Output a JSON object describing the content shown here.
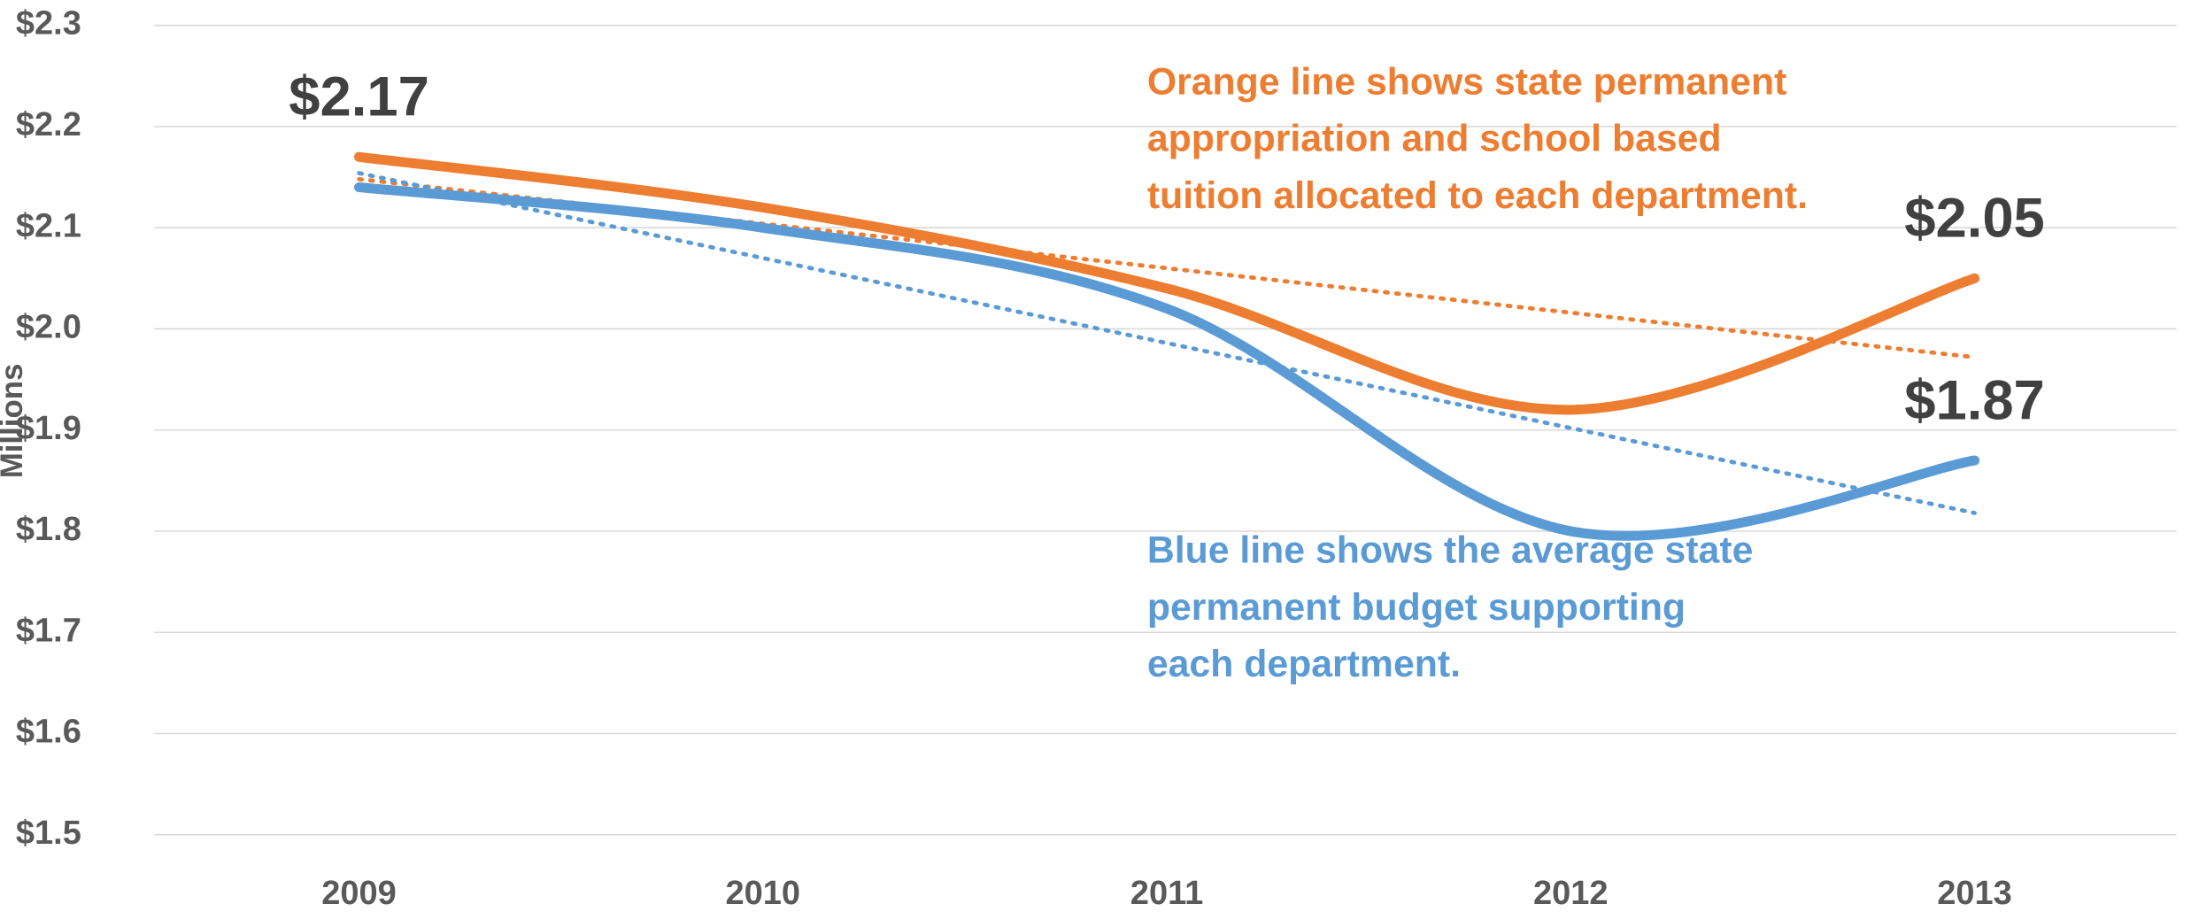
{
  "chart_data": {
    "type": "line",
    "y_axis_label": "Millions",
    "categories": [
      "2009",
      "2010",
      "2011",
      "2012",
      "2013"
    ],
    "series": [
      {
        "color": "#ed7d31",
        "values": [
          2.17,
          2.12,
          2.04,
          1.92,
          2.05
        ],
        "value_labels": [
          "$2.17",
          null,
          null,
          null,
          "$2.05"
        ],
        "trendline": true
      },
      {
        "color": "#5b9bd5",
        "values": [
          2.14,
          2.1,
          2.02,
          1.8,
          1.87
        ],
        "value_labels": [
          null,
          null,
          null,
          null,
          "$1.87"
        ],
        "trendline": true
      }
    ],
    "annotations": [
      {
        "color": "#ed7d31",
        "lines": [
          "Orange line shows state permanent",
          "appropriation and school based",
          "tuition allocated to each department."
        ]
      },
      {
        "color": "#5b9bd5",
        "lines": [
          "Blue line shows the average state",
          "permanent budget supporting",
          "each department."
        ]
      }
    ],
    "ylim": [
      1.5,
      2.3
    ],
    "yticks": [
      {
        "value": 1.5,
        "label": "$1.5"
      },
      {
        "value": 1.6,
        "label": "$1.6"
      },
      {
        "value": 1.7,
        "label": "$1.7"
      },
      {
        "value": 1.8,
        "label": "$1.8"
      },
      {
        "value": 1.9,
        "label": "$1.9"
      },
      {
        "value": 2.0,
        "label": "$2.0"
      },
      {
        "value": 2.1,
        "label": "$2.1"
      },
      {
        "value": 2.2,
        "label": "$2.2"
      },
      {
        "value": 2.3,
        "label": "$2.3"
      }
    ],
    "grid": true
  }
}
